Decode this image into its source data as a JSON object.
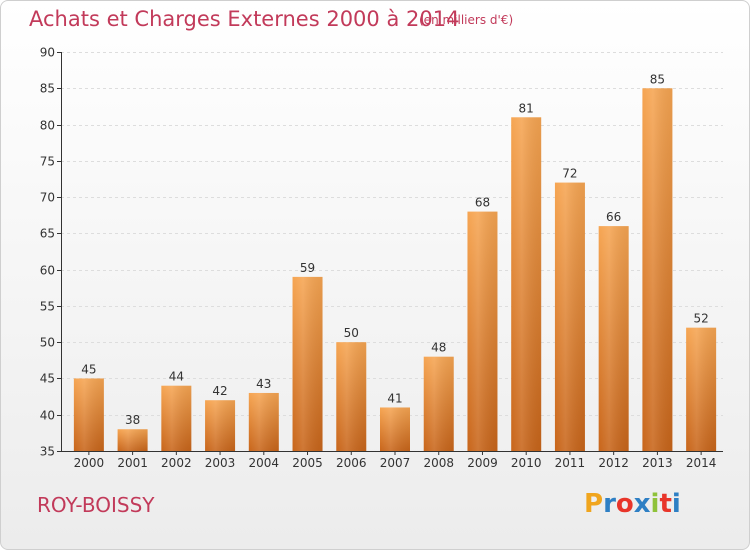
{
  "header": {
    "title": "Achats et Charges Externes 2000 à 2014",
    "subtitle": "(en milliers d'€)"
  },
  "footer": {
    "town": "ROY-BOISSY",
    "brand": "Proxiti",
    "brand_letter_colors": [
      "#f0a51e",
      "#2e7fc4",
      "#e8352a",
      "#2e7fc4",
      "#8fc23a",
      "#e8352a",
      "#2e7fc4"
    ]
  },
  "colors": {
    "title": "#c23a5a",
    "bar_top": "#f6a552",
    "bar_bottom": "#c8651a",
    "grid": "#dddddd",
    "axis": "#333333"
  },
  "chart_data": {
    "type": "bar",
    "title": "Achats et Charges Externes 2000 à 2014",
    "subtitle": "(en milliers d'€)",
    "xlabel": "",
    "ylabel": "",
    "categories": [
      "2000",
      "2001",
      "2002",
      "2003",
      "2004",
      "2005",
      "2006",
      "2007",
      "2008",
      "2009",
      "2010",
      "2011",
      "2012",
      "2013",
      "2014"
    ],
    "values": [
      45,
      38,
      44,
      42,
      43,
      59,
      50,
      41,
      48,
      68,
      81,
      72,
      66,
      85,
      52
    ],
    "ylim": [
      35,
      90
    ],
    "yticks": [
      35,
      40,
      45,
      50,
      55,
      60,
      65,
      70,
      75,
      80,
      85,
      90
    ],
    "grid": true,
    "data_labels": true
  }
}
